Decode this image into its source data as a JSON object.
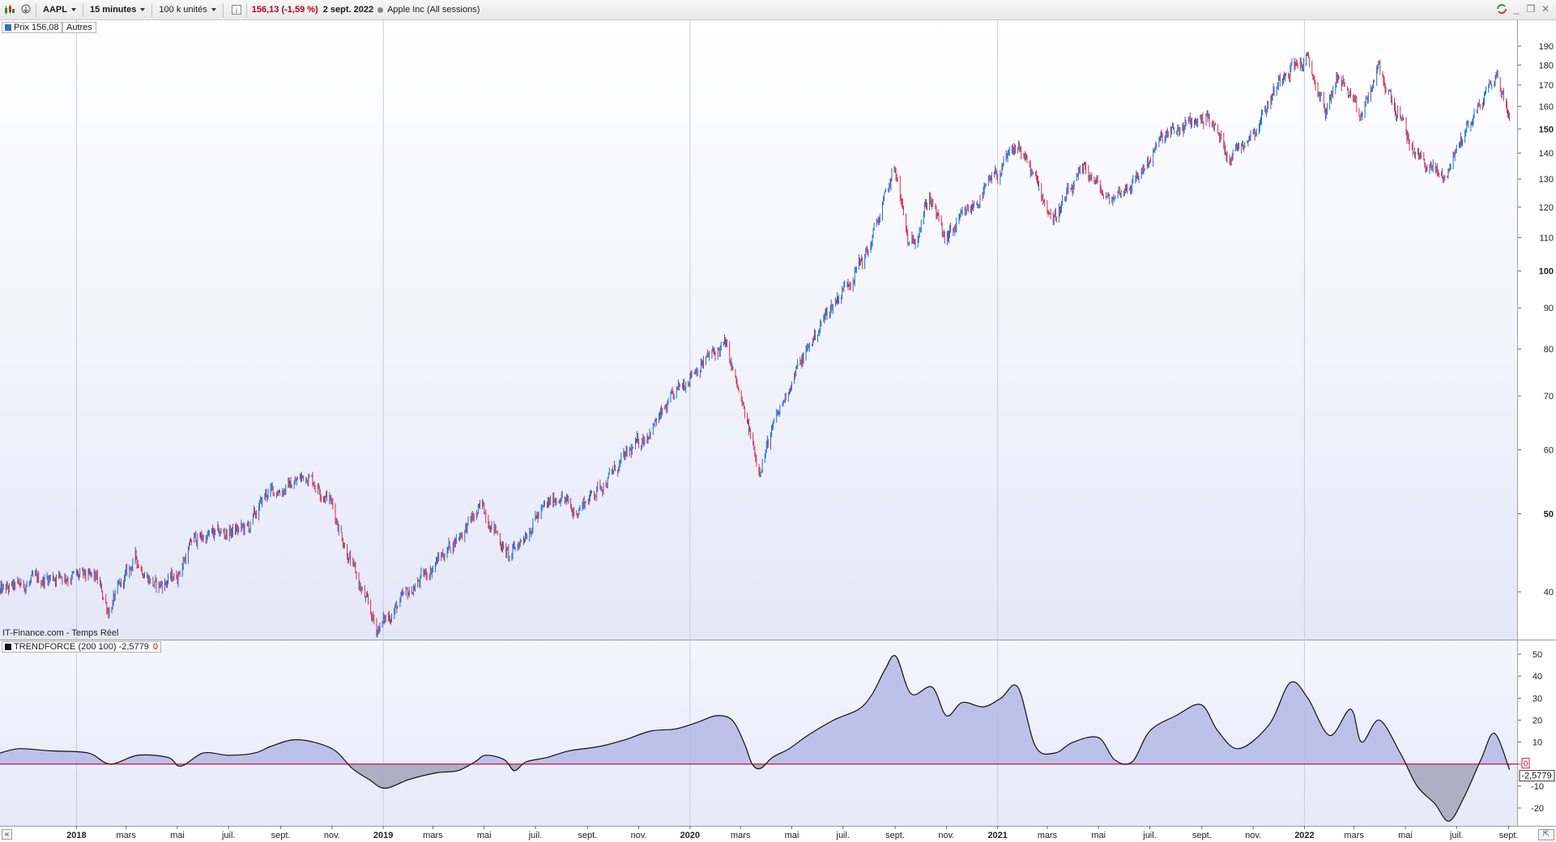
{
  "toolbar": {
    "symbol": "AAPL",
    "interval": "15 minutes",
    "units": "100 k unités",
    "price_change": "156,13 (-1,59 %)",
    "date": "2 sept. 2022",
    "instrument": "Apple Inc (All sessions)"
  },
  "legend": {
    "price": "Prix 156,08",
    "others": "Autres",
    "source": "IT-Finance.com - Temps Réel",
    "indicator": "TRENDFORCE (200 100) -2,5779",
    "indicator_zero": "0"
  },
  "colors": {
    "up_candle": "#1f6fd0",
    "down_candle": "#d9304a",
    "indicator_line": "#111111",
    "indicator_fill_pos": "#b4b9e6",
    "indicator_fill_neg": "#a6a9bd",
    "zero_line": "#c8143c",
    "grid_vertical": "#c9cbd8",
    "price_legend_swatch": "#2e6fd0",
    "indicator_legend_swatch": "#111111"
  },
  "chart_data": [
    {
      "type": "candlestick",
      "title": "AAPL",
      "y_scale": "log",
      "ylim": [
        33,
        195
      ],
      "y_ticks": [
        40,
        50,
        60,
        70,
        80,
        90,
        100,
        110,
        120,
        130,
        140,
        150,
        160,
        170,
        180,
        190
      ],
      "y_ticks_bold": [
        50,
        100,
        150
      ],
      "xlim": [
        "2017-10-02",
        "2022-09-12"
      ],
      "x_tick_labels": [
        {
          "date": "2018-01-01",
          "label": "2018",
          "major": true
        },
        {
          "date": "2018-03-01",
          "label": "mars"
        },
        {
          "date": "2018-05-01",
          "label": "mai"
        },
        {
          "date": "2018-07-01",
          "label": "juil."
        },
        {
          "date": "2018-09-01",
          "label": "sept."
        },
        {
          "date": "2018-11-01",
          "label": "nov."
        },
        {
          "date": "2019-01-01",
          "label": "2019",
          "major": true
        },
        {
          "date": "2019-03-01",
          "label": "mars"
        },
        {
          "date": "2019-05-01",
          "label": "mai"
        },
        {
          "date": "2019-07-01",
          "label": "juil."
        },
        {
          "date": "2019-09-01",
          "label": "sept."
        },
        {
          "date": "2019-11-01",
          "label": "nov."
        },
        {
          "date": "2020-01-01",
          "label": "2020",
          "major": true
        },
        {
          "date": "2020-03-01",
          "label": "mars"
        },
        {
          "date": "2020-05-01",
          "label": "mai"
        },
        {
          "date": "2020-07-01",
          "label": "juil."
        },
        {
          "date": "2020-09-01",
          "label": "sept."
        },
        {
          "date": "2020-11-01",
          "label": "nov."
        },
        {
          "date": "2021-01-01",
          "label": "2021",
          "major": true
        },
        {
          "date": "2021-03-01",
          "label": "mars"
        },
        {
          "date": "2021-05-01",
          "label": "mai"
        },
        {
          "date": "2021-07-01",
          "label": "juil."
        },
        {
          "date": "2021-09-01",
          "label": "sept."
        },
        {
          "date": "2021-11-01",
          "label": "nov."
        },
        {
          "date": "2022-01-01",
          "label": "2022",
          "major": true
        },
        {
          "date": "2022-03-01",
          "label": "mars"
        },
        {
          "date": "2022-05-01",
          "label": "mai"
        },
        {
          "date": "2022-07-01",
          "label": "juil."
        },
        {
          "date": "2022-09-01",
          "label": "sept."
        }
      ],
      "price_path": [
        [
          "2017-10-02",
          40
        ],
        [
          "2017-12-10",
          42
        ],
        [
          "2018-01-25",
          41.5
        ],
        [
          "2018-02-08",
          38
        ],
        [
          "2018-03-12",
          44
        ],
        [
          "2018-04-06",
          40.5
        ],
        [
          "2018-05-01",
          42
        ],
        [
          "2018-05-20",
          46.5
        ],
        [
          "2018-07-25",
          48
        ],
        [
          "2018-08-15",
          53
        ],
        [
          "2018-09-10",
          54
        ],
        [
          "2018-10-03",
          56
        ],
        [
          "2018-10-30",
          52
        ],
        [
          "2018-11-25",
          43
        ],
        [
          "2018-12-24",
          36
        ],
        [
          "2019-01-04",
          37
        ],
        [
          "2019-02-20",
          42
        ],
        [
          "2019-04-30",
          51
        ],
        [
          "2019-05-31",
          44
        ],
        [
          "2019-06-28",
          49
        ],
        [
          "2019-07-31",
          53
        ],
        [
          "2019-08-15",
          50
        ],
        [
          "2019-09-30",
          56
        ],
        [
          "2019-11-30",
          66.5
        ],
        [
          "2020-01-02",
          75
        ],
        [
          "2020-02-12",
          81
        ],
        [
          "2020-03-23",
          57
        ],
        [
          "2020-04-30",
          73
        ],
        [
          "2020-06-10",
          88
        ],
        [
          "2020-07-31",
          106
        ],
        [
          "2020-09-01",
          134
        ],
        [
          "2020-09-18",
          106
        ],
        [
          "2020-10-12",
          124
        ],
        [
          "2020-10-30",
          109
        ],
        [
          "2020-12-10",
          123
        ],
        [
          "2021-01-26",
          143
        ],
        [
          "2021-03-08",
          116
        ],
        [
          "2021-04-16",
          134
        ],
        [
          "2021-05-12",
          122
        ],
        [
          "2021-06-15",
          130
        ],
        [
          "2021-07-16",
          146
        ],
        [
          "2021-09-07",
          156
        ],
        [
          "2021-10-04",
          139
        ],
        [
          "2021-11-05",
          151
        ],
        [
          "2021-12-10",
          179
        ],
        [
          "2022-01-04",
          182
        ],
        [
          "2022-01-27",
          157
        ],
        [
          "2022-02-10",
          176
        ],
        [
          "2022-03-08",
          154
        ],
        [
          "2022-03-30",
          178
        ],
        [
          "2022-05-12",
          140
        ],
        [
          "2022-06-16",
          130
        ],
        [
          "2022-07-08",
          147
        ],
        [
          "2022-08-17",
          175
        ],
        [
          "2022-09-02",
          156
        ]
      ],
      "last_price": 156.08
    },
    {
      "type": "area",
      "title": "TRENDFORCE (200 100)",
      "ylim": [
        -27,
        55
      ],
      "y_ticks": [
        50,
        40,
        30,
        20,
        10,
        0,
        -10,
        -20
      ],
      "baseline": 0,
      "last_value": -2.5779,
      "last_value_label": "-2,5779",
      "points": [
        [
          "2017-10-02",
          5
        ],
        [
          "2017-10-25",
          7
        ],
        [
          "2017-12-01",
          6
        ],
        [
          "2018-01-15",
          5
        ],
        [
          "2018-02-10",
          0
        ],
        [
          "2018-03-15",
          4
        ],
        [
          "2018-04-20",
          3
        ],
        [
          "2018-05-05",
          -1
        ],
        [
          "2018-06-01",
          5
        ],
        [
          "2018-07-01",
          4
        ],
        [
          "2018-08-01",
          5
        ],
        [
          "2018-08-20",
          8
        ],
        [
          "2018-09-15",
          11
        ],
        [
          "2018-10-10",
          10
        ],
        [
          "2018-11-05",
          6
        ],
        [
          "2018-11-25",
          -2
        ],
        [
          "2018-12-15",
          -7
        ],
        [
          "2019-01-03",
          -11
        ],
        [
          "2019-02-01",
          -7
        ],
        [
          "2019-03-05",
          -4
        ],
        [
          "2019-03-31",
          -3
        ],
        [
          "2019-04-20",
          1
        ],
        [
          "2019-05-03",
          4
        ],
        [
          "2019-05-25",
          2
        ],
        [
          "2019-06-06",
          -3
        ],
        [
          "2019-06-20",
          1
        ],
        [
          "2019-07-15",
          3
        ],
        [
          "2019-08-10",
          6
        ],
        [
          "2019-09-15",
          8
        ],
        [
          "2019-10-15",
          11
        ],
        [
          "2019-11-15",
          15
        ],
        [
          "2019-12-15",
          16
        ],
        [
          "2020-01-10",
          19
        ],
        [
          "2020-02-01",
          22
        ],
        [
          "2020-02-20",
          20
        ],
        [
          "2020-03-05",
          10
        ],
        [
          "2020-03-15",
          0
        ],
        [
          "2020-03-25",
          -2
        ],
        [
          "2020-04-08",
          3
        ],
        [
          "2020-04-28",
          7
        ],
        [
          "2020-05-20",
          13
        ],
        [
          "2020-06-20",
          20
        ],
        [
          "2020-07-20",
          25
        ],
        [
          "2020-08-05",
          32
        ],
        [
          "2020-08-20",
          43
        ],
        [
          "2020-09-02",
          49
        ],
        [
          "2020-09-20",
          32
        ],
        [
          "2020-10-15",
          35
        ],
        [
          "2020-11-01",
          22
        ],
        [
          "2020-11-20",
          28
        ],
        [
          "2020-12-15",
          26
        ],
        [
          "2021-01-05",
          30
        ],
        [
          "2021-01-25",
          35
        ],
        [
          "2021-02-15",
          8
        ],
        [
          "2021-03-10",
          5
        ],
        [
          "2021-04-01",
          10
        ],
        [
          "2021-05-01",
          12
        ],
        [
          "2021-05-20",
          2
        ],
        [
          "2021-06-10",
          1
        ],
        [
          "2021-07-01",
          15
        ],
        [
          "2021-08-01",
          22
        ],
        [
          "2021-08-31",
          27
        ],
        [
          "2021-09-20",
          15
        ],
        [
          "2021-10-15",
          7
        ],
        [
          "2021-11-20",
          18
        ],
        [
          "2021-12-15",
          37
        ],
        [
          "2022-01-05",
          30
        ],
        [
          "2022-01-31",
          13
        ],
        [
          "2022-02-25",
          25
        ],
        [
          "2022-03-10",
          10
        ],
        [
          "2022-03-31",
          20
        ],
        [
          "2022-04-25",
          5
        ],
        [
          "2022-05-15",
          -10
        ],
        [
          "2022-06-05",
          -18
        ],
        [
          "2022-06-22",
          -26
        ],
        [
          "2022-07-10",
          -15
        ],
        [
          "2022-07-30",
          2
        ],
        [
          "2022-08-15",
          14
        ],
        [
          "2022-09-02",
          -2.58
        ]
      ]
    }
  ]
}
